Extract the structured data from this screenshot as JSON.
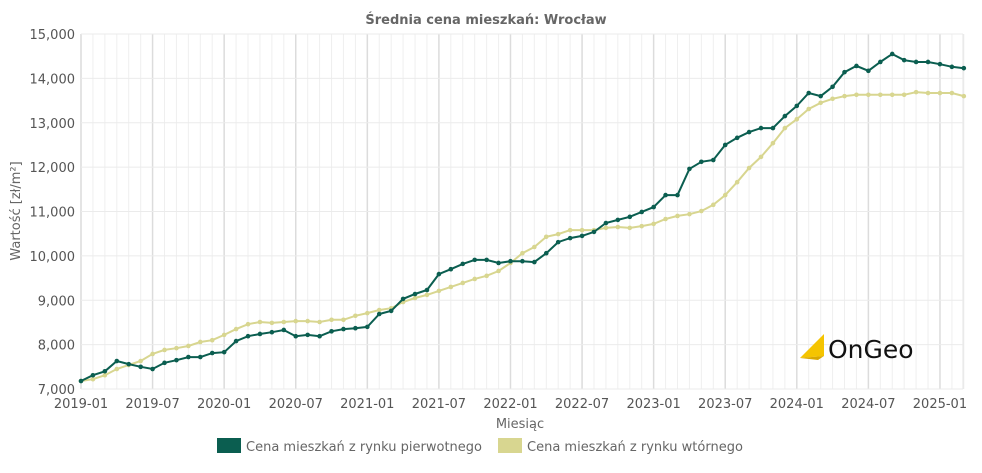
{
  "chart_data": {
    "type": "line",
    "title": "Średnia cena mieszkań: Wrocław",
    "xlabel": "Miesiąc",
    "ylabel": "Wartość [zł/m²]",
    "ylim": [
      7000,
      15000
    ],
    "yticks": [
      "7,000",
      "8,000",
      "9,000",
      "10,000",
      "11,000",
      "12,000",
      "13,000",
      "14,000",
      "15,000"
    ],
    "xticks": [
      "2019-01",
      "2019-07",
      "2020-01",
      "2020-07",
      "2021-01",
      "2021-07",
      "2022-01",
      "2022-07",
      "2023-01",
      "2023-07",
      "2024-01",
      "2024-07",
      "2025-01"
    ],
    "x_start": "2019-01",
    "x_end": "2025-03",
    "grid": true,
    "legend": "bottom",
    "series": [
      {
        "name": "Cena mieszkań z rynku pierwotnego",
        "color": "#0b5e50",
        "values": [
          7180,
          7310,
          7400,
          7630,
          7560,
          7500,
          7450,
          7590,
          7650,
          7720,
          7720,
          7810,
          7830,
          8080,
          8190,
          8240,
          8280,
          8330,
          8190,
          8220,
          8190,
          8300,
          8350,
          8370,
          8400,
          8690,
          8760,
          9030,
          9140,
          9230,
          9590,
          9700,
          9820,
          9910,
          9910,
          9840,
          9880,
          9880,
          9860,
          10060,
          10310,
          10400,
          10450,
          10540,
          10740,
          10810,
          10880,
          10990,
          11100,
          11370,
          11370,
          11960,
          12120,
          12160,
          12500,
          12660,
          12790,
          12880,
          12880,
          13150,
          13380,
          13670,
          13600,
          13810,
          14140,
          14280,
          14170,
          14370,
          14550,
          14410,
          14370,
          14370,
          14320,
          14260,
          14230
        ]
      },
      {
        "name": "Cena mieszkań z rynku wtórnego",
        "color": "#d8d690",
        "values": [
          7180,
          7220,
          7310,
          7450,
          7540,
          7630,
          7790,
          7880,
          7920,
          7970,
          8060,
          8100,
          8220,
          8350,
          8460,
          8510,
          8490,
          8510,
          8530,
          8530,
          8510,
          8560,
          8560,
          8650,
          8710,
          8780,
          8820,
          8960,
          9050,
          9120,
          9210,
          9300,
          9390,
          9480,
          9550,
          9660,
          9840,
          10060,
          10200,
          10430,
          10490,
          10580,
          10580,
          10580,
          10630,
          10650,
          10630,
          10670,
          10720,
          10830,
          10900,
          10940,
          11010,
          11150,
          11370,
          11660,
          11980,
          12230,
          12540,
          12880,
          13080,
          13310,
          13450,
          13540,
          13600,
          13630,
          13630,
          13630,
          13630,
          13630,
          13690,
          13670,
          13670,
          13670,
          13600
        ]
      }
    ]
  },
  "logo": {
    "text": "OnGeo",
    "color": "#f5c400"
  }
}
